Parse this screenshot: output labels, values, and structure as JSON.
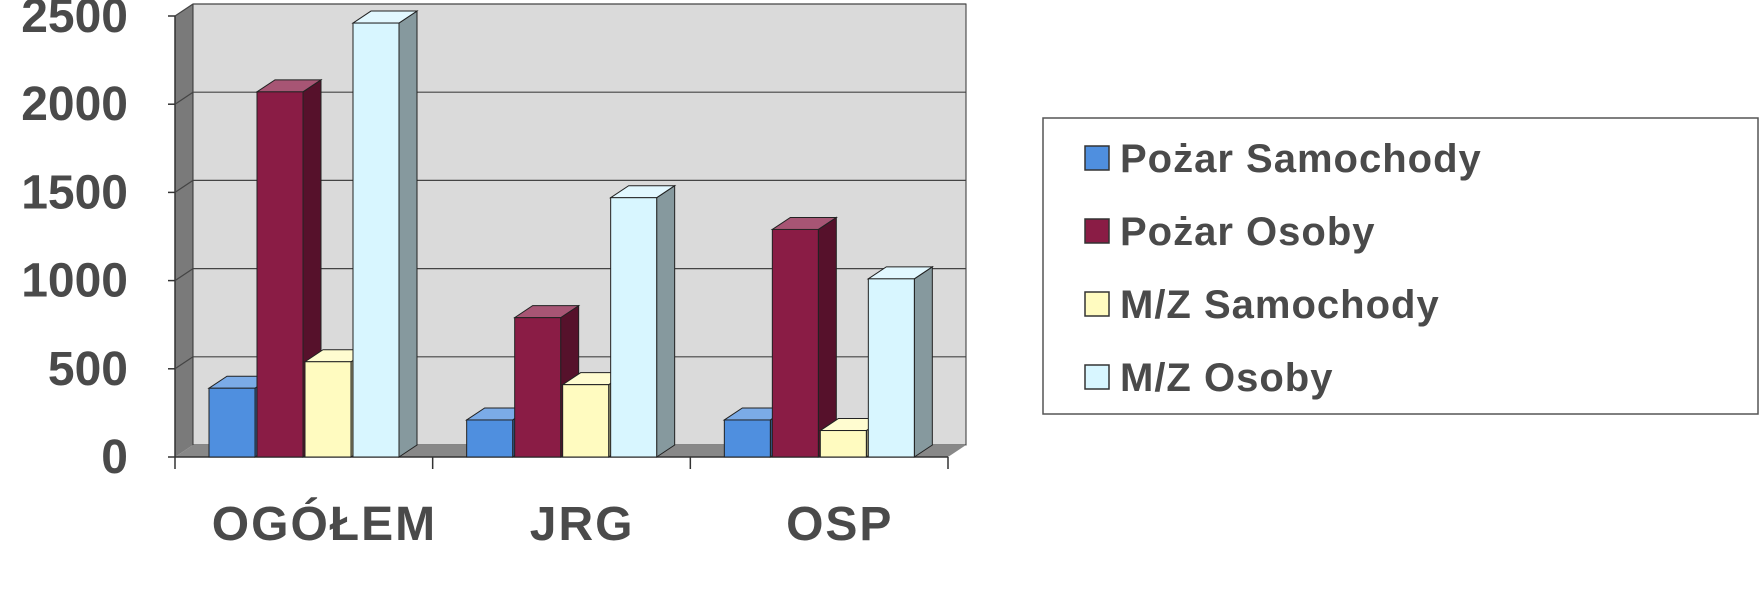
{
  "chart_data": {
    "type": "bar",
    "categories": [
      "OGÓŁEM",
      "JRG",
      "OSP"
    ],
    "series": [
      {
        "name": "Pożar Samochody",
        "values": [
          390,
          210,
          210
        ]
      },
      {
        "name": "Pożar Osoby",
        "values": [
          2070,
          790,
          1290
        ]
      },
      {
        "name": "M/Z Samochody",
        "values": [
          540,
          410,
          150
        ]
      },
      {
        "name": "M/Z Osoby",
        "values": [
          2460,
          1470,
          1010
        ]
      }
    ],
    "ylim": [
      0,
      2500
    ],
    "yticks": [
      0,
      500,
      1000,
      1500,
      2000,
      2500
    ],
    "ytick_labels": [
      "0",
      "500",
      "1000",
      "1500",
      "2000",
      "2500"
    ],
    "grid": true,
    "legend_position": "right",
    "style": "3d-clustered-column",
    "colors": {
      "series": [
        "#4f8fdf",
        "#8a1c45",
        "#fffbc0",
        "#d8f6ff"
      ],
      "wall": "#dadada",
      "floor": "#888888",
      "gridline": "#444444"
    }
  }
}
